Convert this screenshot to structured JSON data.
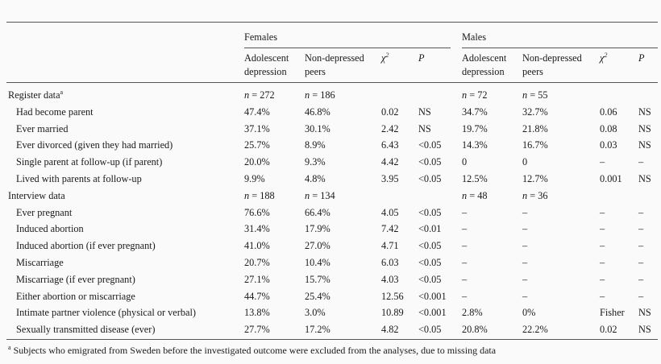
{
  "groups": {
    "females": "Females",
    "males": "Males"
  },
  "columns": {
    "adolescent_l1": "Adolescent",
    "adolescent_l2": "depression",
    "nondep_l1": "Non-depressed",
    "nondep_l2": "peers",
    "chi_base": "χ",
    "chi_sup": "2",
    "p": "P"
  },
  "rows": [
    {
      "label": "Register data",
      "sup": "a",
      "section": true,
      "f_ad": "n = 272",
      "f_nd": "n = 186",
      "f_chi": "",
      "f_p": "",
      "m_ad": "n = 72",
      "m_nd": "n = 55",
      "m_chi": "",
      "m_p": ""
    },
    {
      "label": "Had become  parent",
      "f_ad": "47.4%",
      "f_nd": "46.8%",
      "f_chi": "0.02",
      "f_p": "NS",
      "m_ad": "34.7%",
      "m_nd": "32.7%",
      "m_chi": "0.06",
      "m_p": "NS"
    },
    {
      "label": "Ever married",
      "f_ad": "37.1%",
      "f_nd": "30.1%",
      "f_chi": "2.42",
      "f_p": "NS",
      "m_ad": "19.7%",
      "m_nd": "21.8%",
      "m_chi": "0.08",
      "m_p": "NS"
    },
    {
      "label": "Ever divorced  (given they had  married)",
      "f_ad": "25.7%",
      "f_nd": "8.9%",
      "f_chi": "6.43",
      "f_p": "<0.05",
      "m_ad": "14.3%",
      "m_nd": "16.7%",
      "m_chi": "0.03",
      "m_p": "NS"
    },
    {
      "label": "Single parent at  follow-up (if  parent)",
      "f_ad": "20.0%",
      "f_nd": "9.3%",
      "f_chi": "4.42",
      "f_p": "<0.05",
      "m_ad": "0",
      "m_nd": "0",
      "m_chi": "–",
      "m_p": "–"
    },
    {
      "label": "Lived with  parents at  follow-up",
      "f_ad": "9.9%",
      "f_nd": "4.8%",
      "f_chi": "3.95",
      "f_p": "<0.05",
      "m_ad": "12.5%",
      "m_nd": "12.7%",
      "m_chi": "0.001",
      "m_p": "NS"
    },
    {
      "label": "Interview data",
      "section": true,
      "f_ad": "n = 188",
      "f_nd": "n = 134",
      "f_chi": "",
      "f_p": "",
      "m_ad": "n = 48",
      "m_nd": "n = 36",
      "m_chi": "",
      "m_p": ""
    },
    {
      "label": "Ever pregnant",
      "f_ad": "76.6%",
      "f_nd": "66.4%",
      "f_chi": "4.05",
      "f_p": "<0.05",
      "m_ad": "–",
      "m_nd": "–",
      "m_chi": "–",
      "m_p": "–"
    },
    {
      "label": "Induced  abortion",
      "f_ad": "31.4%",
      "f_nd": "17.9%",
      "f_chi": "7.42",
      "f_p": "<0.01",
      "m_ad": "–",
      "m_nd": "–",
      "m_chi": "–",
      "m_p": "–"
    },
    {
      "label": "Induced  abortion (if  ever pregnant)",
      "f_ad": "41.0%",
      "f_nd": "27.0%",
      "f_chi": "4.71",
      "f_p": "<0.05",
      "m_ad": "–",
      "m_nd": "–",
      "m_chi": "–",
      "m_p": "–"
    },
    {
      "label": "Miscarriage",
      "f_ad": "20.7%",
      "f_nd": "10.4%",
      "f_chi": "6.03",
      "f_p": "<0.05",
      "m_ad": "–",
      "m_nd": "–",
      "m_chi": "–",
      "m_p": "–"
    },
    {
      "label": "Miscarriage  (if  ever pregnant)",
      "f_ad": "27.1%",
      "f_nd": "15.7%",
      "f_chi": "4.03",
      "f_p": "<0.05",
      "m_ad": "–",
      "m_nd": "–",
      "m_chi": "–",
      "m_p": "–"
    },
    {
      "label": "Either abortion  or miscarriage",
      "f_ad": "44.7%",
      "f_nd": "25.4%",
      "f_chi": "12.56",
      "f_p": "<0.001",
      "m_ad": "–",
      "m_nd": "–",
      "m_chi": "–",
      "m_p": "–"
    },
    {
      "label": "Intimate partner violence  (physical or  verbal)",
      "f_ad": "13.8%",
      "f_nd": "3.0%",
      "f_chi": "10.89",
      "f_p": "<0.001",
      "m_ad": "2.8%",
      "m_nd": "0%",
      "m_chi": "Fisher",
      "m_p": "NS"
    },
    {
      "label": "Sexually  transmitted  disease (ever)",
      "f_ad": "27.7%",
      "f_nd": "17.2%",
      "f_chi": "4.82",
      "f_p": "<0.05",
      "m_ad": "20.8%",
      "m_nd": "22.2%",
      "m_chi": "0.02",
      "m_p": "NS"
    }
  ],
  "footnote": {
    "mark": "a",
    "text": "Subjects who emigrated from Sweden before the investigated outcome were excluded from the analyses, due to missing data"
  }
}
